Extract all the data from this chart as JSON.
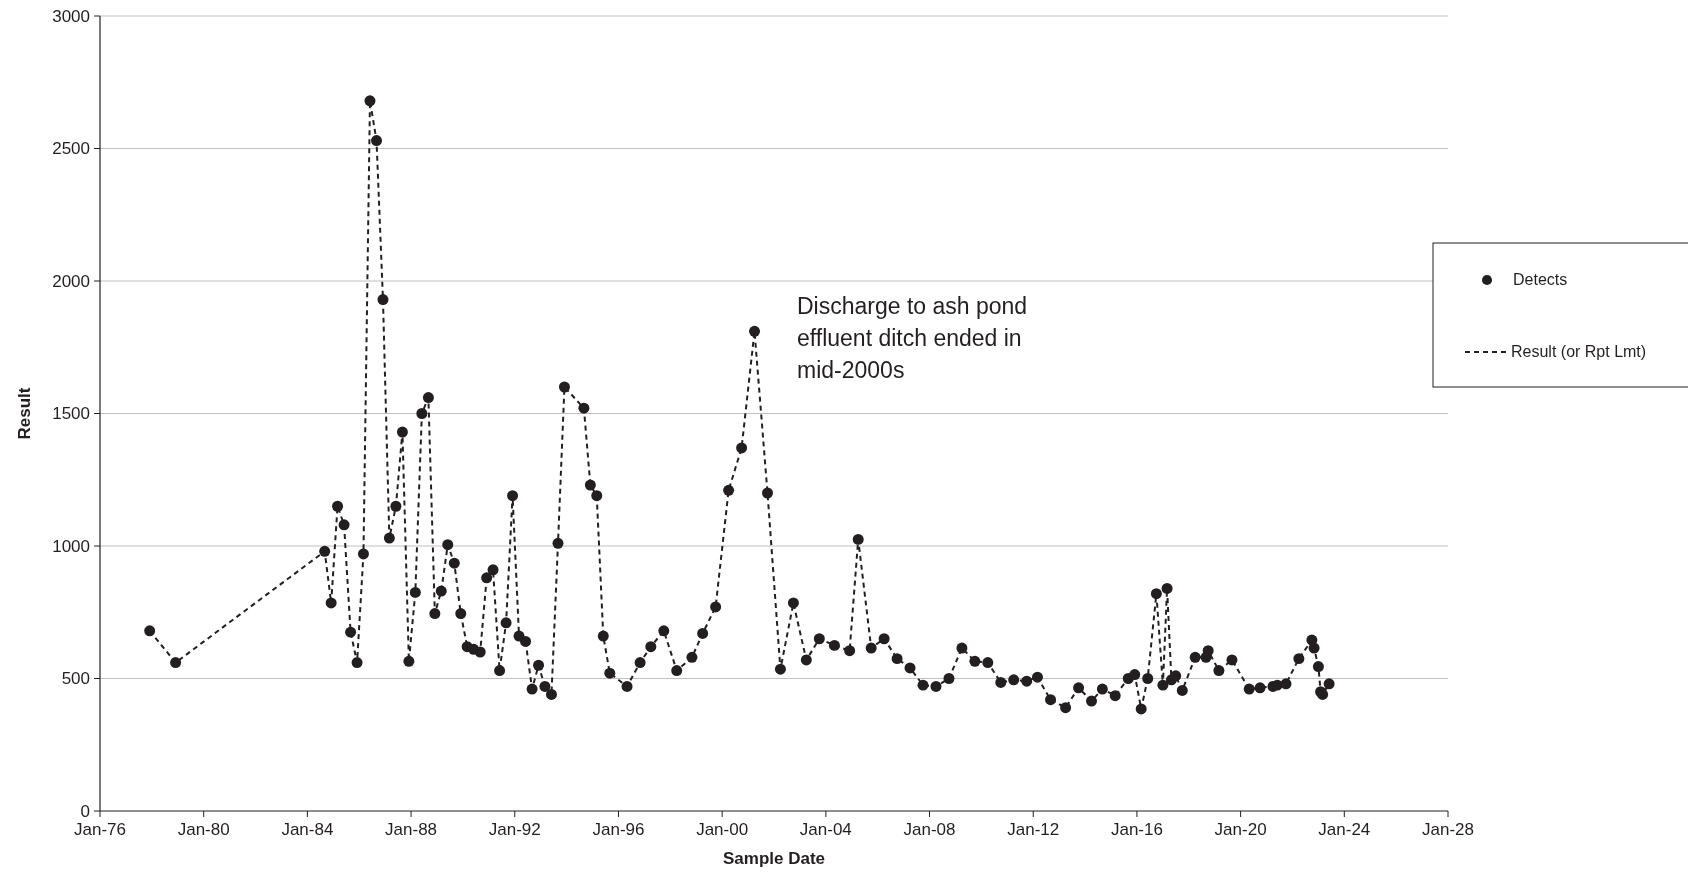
{
  "chart_data": {
    "type": "line",
    "xlabel": "Sample Date",
    "ylabel": "Result",
    "annotations": [
      "Discharge to ash pond effluent ditch ended in mid-2000s"
    ],
    "x": [
      "1977-12",
      "1978-12",
      "1984-09",
      "1984-12",
      "1985-03",
      "1985-06",
      "1985-09",
      "1985-12",
      "1986-03",
      "1986-06",
      "1986-09",
      "1986-12",
      "1987-03",
      "1987-06",
      "1987-09",
      "1987-12",
      "1988-03",
      "1988-06",
      "1988-09",
      "1988-12",
      "1989-03",
      "1989-06",
      "1989-09",
      "1989-12",
      "1990-03",
      "1990-06",
      "1990-09",
      "1990-12",
      "1991-03",
      "1991-06",
      "1991-09",
      "1991-12",
      "1992-03",
      "1992-06",
      "1992-09",
      "1992-12",
      "1993-03",
      "1993-06",
      "1993-09",
      "1993-12",
      "1994-09",
      "1994-12",
      "1995-03",
      "1995-06",
      "1995-09",
      "1996-05",
      "1996-11",
      "1997-04",
      "1997-10",
      "1998-04",
      "1998-11",
      "1999-04",
      "1999-10",
      "2000-04",
      "2000-10",
      "2001-04",
      "2001-10",
      "2002-04",
      "2002-10",
      "2003-04",
      "2003-10",
      "2004-05",
      "2004-12",
      "2005-04",
      "2005-10",
      "2006-04",
      "2006-10",
      "2007-04",
      "2007-10",
      "2008-04",
      "2008-10",
      "2009-04",
      "2009-10",
      "2010-04",
      "2010-10",
      "2011-04",
      "2011-10",
      "2012-03",
      "2012-09",
      "2013-04",
      "2013-10",
      "2014-04",
      "2014-09",
      "2015-03",
      "2015-09",
      "2015-12",
      "2016-03",
      "2016-06",
      "2016-10",
      "2017-01",
      "2017-03",
      "2017-05",
      "2017-07",
      "2017-10",
      "2018-04",
      "2018-09",
      "2018-10",
      "2019-03",
      "2019-09",
      "2020-05",
      "2020-10",
      "2021-04",
      "2021-06",
      "2021-10",
      "2022-04",
      "2022-10",
      "2022-11",
      "2023-01",
      "2023-02",
      "2023-03",
      "2023-06"
    ],
    "series": [
      {
        "name": "Detects",
        "type": "scatter",
        "marker": "circle",
        "color": "#231f20",
        "values": [
          680,
          560,
          980,
          785,
          1150,
          1080,
          675,
          560,
          970,
          2680,
          2530,
          1930,
          1030,
          1150,
          1430,
          565,
          825,
          1500,
          1560,
          745,
          830,
          1005,
          935,
          745,
          620,
          610,
          600,
          880,
          910,
          530,
          710,
          1190,
          660,
          640,
          460,
          550,
          470,
          440,
          1010,
          1600,
          1520,
          1230,
          1190,
          660,
          520,
          470,
          560,
          620,
          680,
          530,
          580,
          670,
          770,
          1210,
          1370,
          1810,
          1200,
          535,
          785,
          570,
          650,
          625,
          605,
          1025,
          615,
          650,
          575,
          540,
          475,
          470,
          500,
          615,
          565,
          560,
          485,
          495,
          490,
          505,
          420,
          390,
          465,
          415,
          460,
          435,
          500,
          515,
          385,
          500,
          820,
          475,
          840,
          495,
          510,
          455,
          580,
          580,
          605,
          530,
          570,
          460,
          465,
          470,
          475,
          480,
          575,
          645,
          615,
          545,
          450,
          440,
          480
        ]
      },
      {
        "name": "Result (or Rpt Lmt)",
        "type": "line",
        "line_style": "dashed",
        "marker": "none",
        "color": "#231f20",
        "values": [
          680,
          560,
          980,
          785,
          1150,
          1080,
          675,
          560,
          970,
          2680,
          2530,
          1930,
          1030,
          1150,
          1430,
          565,
          825,
          1500,
          1560,
          745,
          830,
          1005,
          935,
          745,
          620,
          610,
          600,
          880,
          910,
          530,
          710,
          1190,
          660,
          640,
          460,
          550,
          470,
          440,
          1010,
          1600,
          1520,
          1230,
          1190,
          660,
          520,
          470,
          560,
          620,
          680,
          530,
          580,
          670,
          770,
          1210,
          1370,
          1810,
          1200,
          535,
          785,
          570,
          650,
          625,
          605,
          1025,
          615,
          650,
          575,
          540,
          475,
          470,
          500,
          615,
          565,
          560,
          485,
          495,
          490,
          505,
          420,
          390,
          465,
          415,
          460,
          435,
          500,
          515,
          385,
          500,
          820,
          475,
          840,
          495,
          510,
          455,
          580,
          580,
          605,
          530,
          570,
          460,
          465,
          470,
          475,
          480,
          575,
          645,
          615,
          545,
          450,
          440,
          480
        ]
      }
    ],
    "xlim": [
      "1976-01",
      "2028-01"
    ],
    "xticks": [
      {
        "value": "1976-01",
        "label": "Jan-76"
      },
      {
        "value": "1980-01",
        "label": "Jan-80"
      },
      {
        "value": "1984-01",
        "label": "Jan-84"
      },
      {
        "value": "1988-01",
        "label": "Jan-88"
      },
      {
        "value": "1992-01",
        "label": "Jan-92"
      },
      {
        "value": "1996-01",
        "label": "Jan-96"
      },
      {
        "value": "2000-01",
        "label": "Jan-00"
      },
      {
        "value": "2004-01",
        "label": "Jan-04"
      },
      {
        "value": "2008-01",
        "label": "Jan-08"
      },
      {
        "value": "2012-01",
        "label": "Jan-12"
      },
      {
        "value": "2016-01",
        "label": "Jan-16"
      },
      {
        "value": "2020-01",
        "label": "Jan-20"
      },
      {
        "value": "2024-01",
        "label": "Jan-24"
      },
      {
        "value": "2028-01",
        "label": "Jan-28"
      }
    ],
    "ylim": [
      0,
      3000
    ],
    "yticks": [
      0,
      500,
      1000,
      1500,
      2000,
      2500,
      3000
    ],
    "grid": "y",
    "legend": "right"
  }
}
